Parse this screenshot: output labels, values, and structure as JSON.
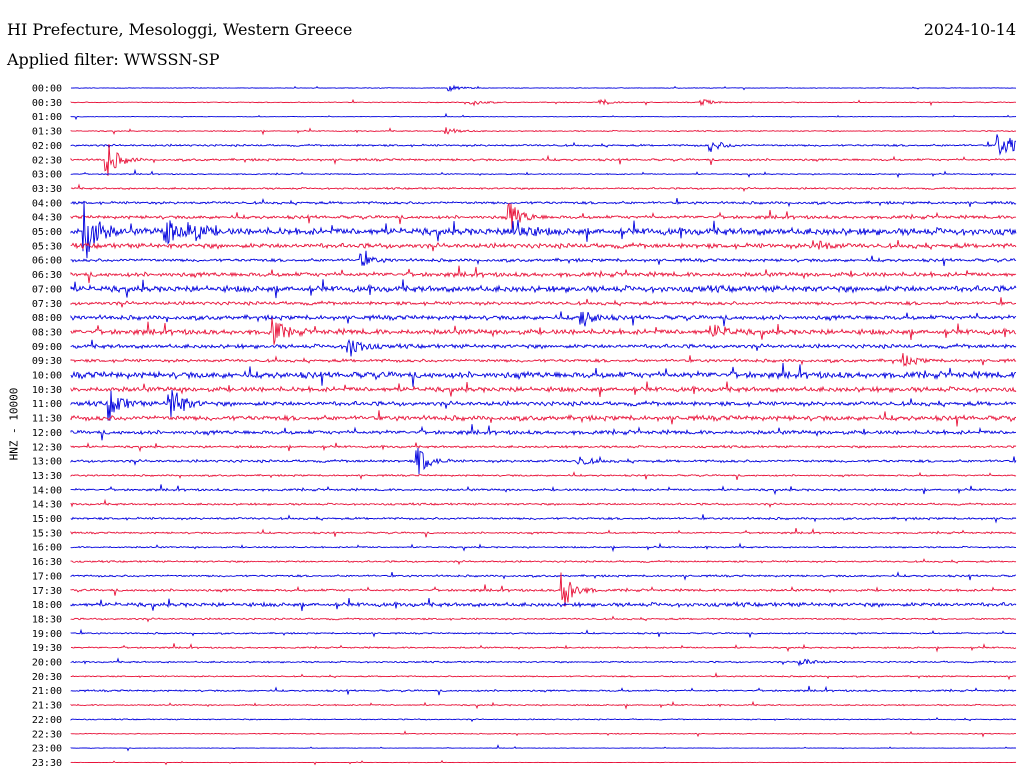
{
  "header": {
    "title": "HI Prefecture, Mesologgi, Western Greece",
    "date": "2024-10-14",
    "filter": "Applied filter: WWSSN-SP"
  },
  "chart_data": {
    "type": "line",
    "title": "HI Prefecture, Mesologgi, Western Greece",
    "ylabel": "HNZ - 10000",
    "xlabel": "",
    "row_labels": [
      "00:00",
      "00:30",
      "01:00",
      "01:30",
      "02:00",
      "02:30",
      "03:00",
      "03:30",
      "04:00",
      "04:30",
      "05:00",
      "05:30",
      "06:00",
      "06:30",
      "07:00",
      "07:30",
      "08:00",
      "08:30",
      "09:00",
      "09:30",
      "10:00",
      "10:30",
      "11:00",
      "11:30",
      "12:00",
      "12:30",
      "13:00",
      "13:30",
      "14:00",
      "14:30",
      "15:00",
      "15:30",
      "16:00",
      "16:30",
      "17:00",
      "17:30",
      "18:00",
      "18:30",
      "19:00",
      "19:30",
      "20:00",
      "20:30",
      "21:00",
      "21:30",
      "22:00",
      "22:30",
      "23:00",
      "23:30"
    ],
    "row_colors": [
      "#0000dd",
      "#e8133a"
    ],
    "noise_level": [
      0.3,
      0.4,
      0.2,
      0.5,
      0.9,
      1.0,
      0.5,
      0.8,
      1.2,
      1.5,
      3.2,
      2.2,
      1.4,
      2.0,
      2.8,
      1.6,
      2.0,
      2.4,
      1.8,
      1.4,
      2.9,
      2.2,
      2.0,
      2.2,
      1.8,
      1.0,
      1.2,
      0.8,
      1.0,
      0.9,
      1.0,
      0.8,
      0.7,
      0.8,
      0.9,
      1.1,
      1.8,
      0.8,
      0.7,
      0.7,
      0.7,
      0.6,
      0.8,
      0.6,
      0.5,
      0.4,
      0.2,
      0.2
    ],
    "events": [
      {
        "row": 0,
        "minute": 12.0,
        "amp": 3
      },
      {
        "row": 1,
        "minute": 12.7,
        "amp": 3
      },
      {
        "row": 1,
        "minute": 16.8,
        "amp": 3
      },
      {
        "row": 1,
        "minute": 20.0,
        "amp": 3
      },
      {
        "row": 3,
        "minute": 11.9,
        "amp": 4
      },
      {
        "row": 4,
        "minute": 20.3,
        "amp": 6
      },
      {
        "row": 4,
        "minute": 29.4,
        "amp": 12
      },
      {
        "row": 4,
        "minute": 29.8,
        "amp": 6
      },
      {
        "row": 5,
        "minute": 1.1,
        "amp": 18
      },
      {
        "row": 9,
        "minute": 13.9,
        "amp": 16
      },
      {
        "row": 10,
        "minute": 0.4,
        "amp": 38
      },
      {
        "row": 10,
        "minute": 3.0,
        "amp": 14
      },
      {
        "row": 10,
        "minute": 3.7,
        "amp": 14
      },
      {
        "row": 10,
        "minute": 14.0,
        "amp": 14
      },
      {
        "row": 11,
        "minute": 23.6,
        "amp": 6
      },
      {
        "row": 12,
        "minute": 9.2,
        "amp": 6
      },
      {
        "row": 16,
        "minute": 16.2,
        "amp": 10
      },
      {
        "row": 17,
        "minute": 6.4,
        "amp": 12
      },
      {
        "row": 17,
        "minute": 20.4,
        "amp": 7
      },
      {
        "row": 18,
        "minute": 8.8,
        "amp": 12
      },
      {
        "row": 19,
        "minute": 26.4,
        "amp": 6
      },
      {
        "row": 22,
        "minute": 1.2,
        "amp": 16
      },
      {
        "row": 22,
        "minute": 3.1,
        "amp": 22
      },
      {
        "row": 26,
        "minute": 11.0,
        "amp": 14
      },
      {
        "row": 26,
        "minute": 16.1,
        "amp": 5
      },
      {
        "row": 35,
        "minute": 15.6,
        "amp": 20
      },
      {
        "row": 40,
        "minute": 23.1,
        "amp": 5
      }
    ]
  }
}
